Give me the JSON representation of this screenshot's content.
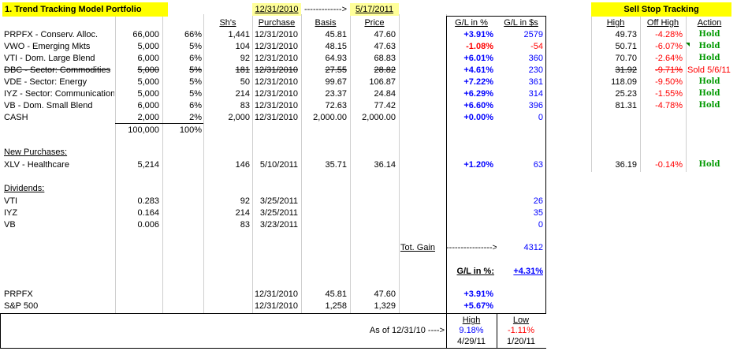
{
  "portfolio": {
    "title": "1. Trend Tracking Model Portfolio",
    "date_start": "12/31/2010",
    "arrow": "------------->",
    "date_end": "5/17/2011",
    "headers": {
      "shares": "Sh's",
      "purchase": "Purchase",
      "basis": "Basis",
      "price": "Price",
      "gl_pct": "G/L in %",
      "gl_usd": "G/L in $s"
    },
    "rows": [
      {
        "name": "PRPFX - Conserv. Alloc.",
        "amount": "66,000",
        "pct": "66%",
        "shares": "1,441",
        "purchase": "12/31/2010",
        "basis": "45.81",
        "price": "47.60",
        "gl_pct": "+3.91%",
        "gl_usd": "2579",
        "strike": false,
        "gl_color": "blue"
      },
      {
        "name": "VWO - Emerging Mkts",
        "amount": "5,000",
        "pct": "5%",
        "shares": "104",
        "purchase": "12/31/2010",
        "basis": "48.15",
        "price": "47.63",
        "gl_pct": "-1.08%",
        "gl_usd": "-54",
        "strike": false,
        "gl_color": "red"
      },
      {
        "name": "VTI - Dom. Large Blend",
        "amount": "6,000",
        "pct": "6%",
        "shares": "92",
        "purchase": "12/31/2010",
        "basis": "64.93",
        "price": "68.83",
        "gl_pct": "+6.01%",
        "gl_usd": "360",
        "strike": false,
        "gl_color": "blue"
      },
      {
        "name": "DBC - Sector: Commodities",
        "amount": "5,000",
        "pct": "5%",
        "shares": "181",
        "purchase": "12/31/2010",
        "basis": "27.55",
        "price": "28.82",
        "gl_pct": "+4.61%",
        "gl_usd": "230",
        "strike": true,
        "gl_color": "blue"
      },
      {
        "name": "VDE - Sector: Energy",
        "amount": "5,000",
        "pct": "5%",
        "shares": "50",
        "purchase": "12/31/2010",
        "basis": "99.67",
        "price": "106.87",
        "gl_pct": "+7.22%",
        "gl_usd": "361",
        "strike": false,
        "gl_color": "blue"
      },
      {
        "name": "IYZ - Sector: Communications",
        "amount": "5,000",
        "pct": "5%",
        "shares": "214",
        "purchase": "12/31/2010",
        "basis": "23.37",
        "price": "24.84",
        "gl_pct": "+6.29%",
        "gl_usd": "314",
        "strike": false,
        "gl_color": "blue"
      },
      {
        "name": "VB - Dom. Small Blend",
        "amount": "6,000",
        "pct": "6%",
        "shares": "83",
        "purchase": "12/31/2010",
        "basis": "72.63",
        "price": "77.42",
        "gl_pct": "+6.60%",
        "gl_usd": "396",
        "strike": false,
        "gl_color": "blue"
      },
      {
        "name": "CASH",
        "amount": "2,000",
        "pct": "2%",
        "shares": "2,000",
        "purchase": "12/31/2010",
        "basis": "2,000.00",
        "price": "2,000.00",
        "gl_pct": "+0.00%",
        "gl_usd": "0",
        "strike": false,
        "gl_color": "blue"
      }
    ],
    "total_amount": "100,000",
    "total_pct": "100%"
  },
  "new_purchases": {
    "label": "New Purchases:",
    "rows": [
      {
        "name": "XLV - Healthcare",
        "amount": "5,214",
        "shares": "146",
        "purchase": "5/10/2011",
        "basis": "35.71",
        "price": "36.14",
        "gl_pct": "+1.20%",
        "gl_usd": "63"
      }
    ]
  },
  "dividends": {
    "label": "Dividends:",
    "rows": [
      {
        "name": "VTI",
        "amount": "0.283",
        "shares": "92",
        "date": "3/25/2011",
        "gl_usd": "26"
      },
      {
        "name": "IYZ",
        "amount": "0.164",
        "shares": "214",
        "date": "3/25/2011",
        "gl_usd": "35"
      },
      {
        "name": "VB",
        "amount": "0.006",
        "shares": "83",
        "date": "3/23/2011",
        "gl_usd": "0"
      }
    ]
  },
  "totals": {
    "tot_gain_label": "Tot. Gain",
    "tot_gain_arrow": "---------------->",
    "tot_gain_value": "4312",
    "gl_pct_label": "G/L in %:",
    "gl_pct_value": "+4.31%"
  },
  "benchmarks": [
    {
      "name": "PRPFX",
      "purchase": "12/31/2010",
      "basis": "45.81",
      "price": "47.60",
      "gl_pct": "+3.91%"
    },
    {
      "name": "S&P 500",
      "purchase": "12/31/2010",
      "basis": "1,258",
      "price": "1,329",
      "gl_pct": "+5.67%"
    }
  ],
  "high_low": {
    "as_of": "As of 12/31/10 ---->",
    "high_label": "High",
    "low_label": "Low",
    "high_value": "9.18%",
    "low_value": "-1.11%",
    "high_date": "4/29/11",
    "low_date": "1/20/11"
  },
  "sell_stop": {
    "title": "Sell Stop Tracking",
    "headers": {
      "high": "High",
      "off_high": "Off High",
      "action": "Action"
    },
    "rows": [
      {
        "high": "49.73",
        "off_high": "-4.28%",
        "action": "Hold",
        "strike": false
      },
      {
        "high": "50.71",
        "off_high": "-6.07%",
        "action": "Hold",
        "strike": false
      },
      {
        "high": "70.70",
        "off_high": "-2.64%",
        "action": "Hold",
        "strike": false
      },
      {
        "high": "31.92",
        "off_high": "-9.71%",
        "action": "Sold 5/6/11",
        "strike": true
      },
      {
        "high": "118.09",
        "off_high": "-9.50%",
        "action": "Hold",
        "strike": false
      },
      {
        "high": "25.23",
        "off_high": "-1.55%",
        "action": "Hold",
        "strike": false
      },
      {
        "high": "81.31",
        "off_high": "-4.78%",
        "action": "Hold",
        "strike": false
      }
    ],
    "new_row": {
      "high": "36.19",
      "off_high": "-0.14%",
      "action": "Hold"
    }
  },
  "colors": {
    "header_bg": "#ffff00",
    "date_bg": "#ffff99",
    "positive": "#0000ff",
    "negative": "#ff0000",
    "hold": "#009900"
  }
}
